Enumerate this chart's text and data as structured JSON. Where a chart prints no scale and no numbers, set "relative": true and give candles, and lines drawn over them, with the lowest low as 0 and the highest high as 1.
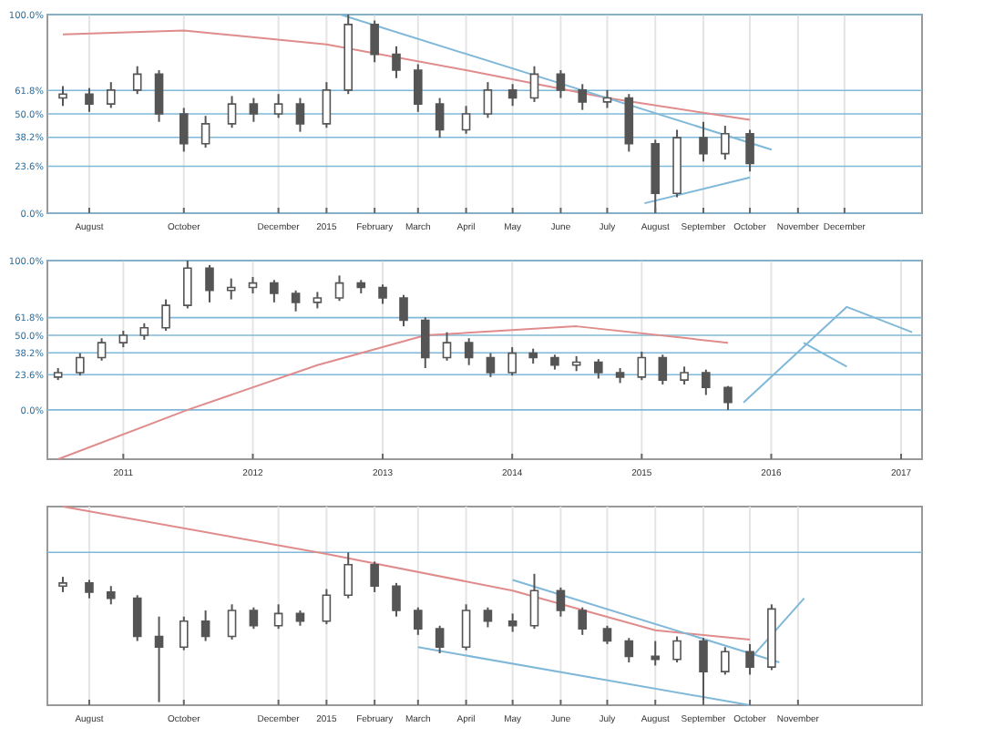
{
  "chart_data": [
    {
      "type": "candlestick",
      "relative": true,
      "grid": true,
      "color": "#555555",
      "xlim": [
        "2014-07-05",
        "2016-01-20"
      ],
      "xticks": [
        {
          "value": "2014-08-01",
          "label": "August"
        },
        {
          "value": "2014-10-01",
          "label": "October"
        },
        {
          "value": "2014-12-01",
          "label": "December"
        },
        {
          "value": "2015-01-01",
          "label": "2015"
        },
        {
          "value": "2015-02-01",
          "label": "February"
        },
        {
          "value": "2015-03-01",
          "label": "March"
        },
        {
          "value": "2015-04-01",
          "label": "April"
        },
        {
          "value": "2015-05-01",
          "label": "May"
        },
        {
          "value": "2015-06-01",
          "label": "June"
        },
        {
          "value": "2015-07-01",
          "label": "July"
        },
        {
          "value": "2015-08-01",
          "label": "August"
        },
        {
          "value": "2015-09-01",
          "label": "September"
        },
        {
          "value": "2015-10-01",
          "label": "October"
        },
        {
          "value": "2015-11-01",
          "label": "November"
        },
        {
          "value": "2015-12-01",
          "label": "December"
        }
      ],
      "x": [
        "2014-07-15",
        "2014-08-01",
        "2014-08-15",
        "2014-09-01",
        "2014-09-15",
        "2014-10-01",
        "2014-10-15",
        "2014-11-01",
        "2014-11-15",
        "2014-12-01",
        "2014-12-15",
        "2015-01-01",
        "2015-01-15",
        "2015-02-01",
        "2015-02-15",
        "2015-03-01",
        "2015-03-15",
        "2015-04-01",
        "2015-04-15",
        "2015-05-01",
        "2015-05-15",
        "2015-06-01",
        "2015-06-15",
        "2015-07-01",
        "2015-07-15",
        "2015-08-01",
        "2015-08-15",
        "2015-09-01",
        "2015-09-15",
        "2015-10-01"
      ],
      "ohlc": [
        [
          0.58,
          0.64,
          0.54,
          0.6
        ],
        [
          0.6,
          0.63,
          0.51,
          0.55
        ],
        [
          0.55,
          0.66,
          0.53,
          0.62
        ],
        [
          0.62,
          0.74,
          0.6,
          0.7
        ],
        [
          0.7,
          0.72,
          0.46,
          0.5
        ],
        [
          0.5,
          0.53,
          0.31,
          0.35
        ],
        [
          0.35,
          0.49,
          0.33,
          0.45
        ],
        [
          0.45,
          0.59,
          0.43,
          0.55
        ],
        [
          0.55,
          0.58,
          0.46,
          0.5
        ],
        [
          0.5,
          0.6,
          0.48,
          0.55
        ],
        [
          0.55,
          0.58,
          0.41,
          0.45
        ],
        [
          0.45,
          0.66,
          0.43,
          0.62
        ],
        [
          0.62,
          1,
          0.6,
          0.95
        ],
        [
          0.95,
          0.97,
          0.76,
          0.8
        ],
        [
          0.8,
          0.84,
          0.68,
          0.72
        ],
        [
          0.72,
          0.75,
          0.51,
          0.55
        ],
        [
          0.55,
          0.58,
          0.38,
          0.42
        ],
        [
          0.42,
          0.54,
          0.4,
          0.5
        ],
        [
          0.5,
          0.66,
          0.48,
          0.62
        ],
        [
          0.62,
          0.65,
          0.54,
          0.58
        ],
        [
          0.58,
          0.74,
          0.56,
          0.7
        ],
        [
          0.7,
          0.72,
          0.58,
          0.62
        ],
        [
          0.62,
          0.65,
          0.52,
          0.56
        ],
        [
          0.56,
          0.62,
          0.53,
          0.58
        ],
        [
          0.58,
          0.6,
          0.31,
          0.35
        ],
        [
          0.35,
          0.37,
          0,
          0.1
        ],
        [
          0.1,
          0.42,
          0.08,
          0.38
        ],
        [
          0.38,
          0.46,
          0.26,
          0.3
        ],
        [
          0.3,
          0.44,
          0.27,
          0.4
        ],
        [
          0.4,
          0.42,
          0.21,
          0.25
        ]
      ],
      "series": [
        {
          "type": "line",
          "color": "#e08c8c",
          "x": [
            "2014-07-15",
            "2014-10-01",
            "2015-01-01",
            "2015-04-01",
            "2015-07-01",
            "2015-10-01"
          ],
          "values": [
            0.9,
            0.92,
            0.85,
            0.72,
            0.58,
            0.47
          ]
        },
        {
          "type": "line",
          "color": "#7fb8d8",
          "x": [
            "2015-01-10",
            "2015-10-15"
          ],
          "values": [
            1.0,
            0.32
          ]
        },
        {
          "type": "line",
          "color": "#7fb8d8",
          "x": [
            "2015-07-25",
            "2015-10-01"
          ],
          "values": [
            0.05,
            0.18
          ]
        }
      ],
      "ref_lines": [
        {
          "axis": "y",
          "value": 1,
          "label": "100.0%",
          "color": "#7fb8d8"
        },
        {
          "axis": "y",
          "value": 0.618,
          "label": "61.8%",
          "color": "#7fb8d8"
        },
        {
          "axis": "y",
          "value": 0.5,
          "label": "50.0%",
          "color": "#7fb8d8"
        },
        {
          "axis": "y",
          "value": 0.382,
          "label": "38.2%",
          "color": "#7fb8d8"
        },
        {
          "axis": "y",
          "value": 0.236,
          "label": "23.6%",
          "color": "#7fb8d8"
        },
        {
          "axis": "y",
          "value": 0,
          "label": "0.0%",
          "color": "#7fb8d8"
        }
      ]
    },
    {
      "type": "candlestick",
      "relative": true,
      "grid": true,
      "color": "#555555",
      "xlim": [
        "2010-06-01",
        "2017-03-01"
      ],
      "xticks": [
        {
          "value": "2011-01-01",
          "label": "2011"
        },
        {
          "value": "2012-01-01",
          "label": "2012"
        },
        {
          "value": "2013-01-01",
          "label": "2013"
        },
        {
          "value": "2014-01-01",
          "label": "2014"
        },
        {
          "value": "2015-01-01",
          "label": "2015"
        },
        {
          "value": "2016-01-01",
          "label": "2016"
        },
        {
          "value": "2017-01-01",
          "label": "2017"
        }
      ],
      "x": [
        "2010-07-01",
        "2010-09-01",
        "2010-11-01",
        "2011-01-01",
        "2011-03-01",
        "2011-05-01",
        "2011-07-01",
        "2011-09-01",
        "2011-11-01",
        "2012-01-01",
        "2012-03-01",
        "2012-05-01",
        "2012-07-01",
        "2012-09-01",
        "2012-11-01",
        "2013-01-01",
        "2013-03-01",
        "2013-05-01",
        "2013-07-01",
        "2013-09-01",
        "2013-11-01",
        "2014-01-01",
        "2014-03-01",
        "2014-05-01",
        "2014-07-01",
        "2014-09-01",
        "2014-11-01",
        "2015-01-01",
        "2015-03-01",
        "2015-05-01",
        "2015-07-01",
        "2015-09-01"
      ],
      "ohlc": [
        [
          0.22,
          0.28,
          0.2,
          0.25
        ],
        [
          0.25,
          0.38,
          0.23,
          0.35
        ],
        [
          0.35,
          0.48,
          0.33,
          0.45
        ],
        [
          0.45,
          0.53,
          0.42,
          0.5
        ],
        [
          0.5,
          0.58,
          0.47,
          0.55
        ],
        [
          0.55,
          0.74,
          0.53,
          0.7
        ],
        [
          0.7,
          1,
          0.68,
          0.95
        ],
        [
          0.95,
          0.97,
          0.72,
          0.8
        ],
        [
          0.8,
          0.88,
          0.74,
          0.82
        ],
        [
          0.82,
          0.89,
          0.78,
          0.85
        ],
        [
          0.85,
          0.87,
          0.72,
          0.78
        ],
        [
          0.78,
          0.8,
          0.66,
          0.72
        ],
        [
          0.72,
          0.79,
          0.68,
          0.75
        ],
        [
          0.75,
          0.9,
          0.73,
          0.85
        ],
        [
          0.85,
          0.87,
          0.78,
          0.82
        ],
        [
          0.82,
          0.84,
          0.71,
          0.75
        ],
        [
          0.75,
          0.77,
          0.56,
          0.6
        ],
        [
          0.6,
          0.62,
          0.28,
          0.35
        ],
        [
          0.35,
          0.52,
          0.33,
          0.45
        ],
        [
          0.45,
          0.48,
          0.3,
          0.35
        ],
        [
          0.35,
          0.38,
          0.22,
          0.25
        ],
        [
          0.25,
          0.42,
          0.23,
          0.38
        ],
        [
          0.38,
          0.41,
          0.31,
          0.35
        ],
        [
          0.35,
          0.37,
          0.27,
          0.3
        ],
        [
          0.3,
          0.36,
          0.26,
          0.32
        ],
        [
          0.32,
          0.34,
          0.21,
          0.25
        ],
        [
          0.25,
          0.28,
          0.18,
          0.22
        ],
        [
          0.22,
          0.39,
          0.2,
          0.35
        ],
        [
          0.35,
          0.37,
          0.17,
          0.2
        ],
        [
          0.2,
          0.29,
          0.17,
          0.25
        ],
        [
          0.25,
          0.27,
          0.1,
          0.15
        ],
        [
          0.15,
          0.16,
          0,
          0.05
        ]
      ],
      "series": [
        {
          "type": "line",
          "color": "#e08c8c",
          "x": [
            "2010-07-01",
            "2011-07-01",
            "2012-07-01",
            "2013-05-01",
            "2014-07-01",
            "2015-09-01"
          ],
          "values": [
            -0.33,
            0.0,
            0.3,
            0.5,
            0.56,
            0.45
          ]
        },
        {
          "type": "line",
          "color": "#7fb8d8",
          "x": [
            "2015-10-15",
            "2016-08-01",
            "2017-02-01"
          ],
          "values": [
            0.05,
            0.69,
            0.52
          ]
        },
        {
          "type": "line",
          "color": "#7fb8d8",
          "x": [
            "2016-04-01",
            "2016-08-01"
          ],
          "values": [
            0.45,
            0.29
          ]
        }
      ],
      "ref_lines": [
        {
          "axis": "y",
          "value": 1,
          "label": "100.0%",
          "color": "#7fb8d8"
        },
        {
          "axis": "y",
          "value": 0.618,
          "label": "61.8%",
          "color": "#7fb8d8"
        },
        {
          "axis": "y",
          "value": 0.5,
          "label": "50.0%",
          "color": "#7fb8d8"
        },
        {
          "axis": "y",
          "value": 0.382,
          "label": "38.2%",
          "color": "#7fb8d8"
        },
        {
          "axis": "y",
          "value": 0.236,
          "label": "23.6%",
          "color": "#7fb8d8"
        },
        {
          "axis": "y",
          "value": 0,
          "label": "0.0%",
          "color": "#7fb8d8"
        }
      ]
    },
    {
      "type": "candlestick",
      "relative": true,
      "grid": true,
      "color": "#555555",
      "xlim": [
        "2014-07-05",
        "2016-01-20"
      ],
      "xticks": [
        {
          "value": "2014-08-01",
          "label": "August"
        },
        {
          "value": "2014-10-01",
          "label": "October"
        },
        {
          "value": "2014-12-01",
          "label": "December"
        },
        {
          "value": "2015-01-01",
          "label": "2015"
        },
        {
          "value": "2015-02-01",
          "label": "February"
        },
        {
          "value": "2015-03-01",
          "label": "March"
        },
        {
          "value": "2015-04-01",
          "label": "April"
        },
        {
          "value": "2015-05-01",
          "label": "May"
        },
        {
          "value": "2015-06-01",
          "label": "June"
        },
        {
          "value": "2015-07-01",
          "label": "July"
        },
        {
          "value": "2015-08-01",
          "label": "August"
        },
        {
          "value": "2015-09-01",
          "label": "September"
        },
        {
          "value": "2015-10-01",
          "label": "October"
        },
        {
          "value": "2015-11-01",
          "label": "November"
        }
      ],
      "x": [
        "2014-07-15",
        "2014-08-01",
        "2014-08-15",
        "2014-09-01",
        "2014-09-15",
        "2014-10-01",
        "2014-10-15",
        "2014-11-01",
        "2014-11-15",
        "2014-12-01",
        "2014-12-15",
        "2015-01-01",
        "2015-01-15",
        "2015-02-01",
        "2015-02-15",
        "2015-03-01",
        "2015-03-15",
        "2015-04-01",
        "2015-04-15",
        "2015-05-01",
        "2015-05-15",
        "2015-06-01",
        "2015-06-15",
        "2015-07-01",
        "2015-07-15",
        "2015-08-01",
        "2015-08-15",
        "2015-09-01",
        "2015-09-15",
        "2015-10-01",
        "2015-10-15"
      ],
      "ohlc": [
        [
          0.78,
          0.84,
          0.74,
          0.8
        ],
        [
          0.8,
          0.82,
          0.7,
          0.74
        ],
        [
          0.74,
          0.78,
          0.66,
          0.7
        ],
        [
          0.7,
          0.72,
          0.42,
          0.45
        ],
        [
          0.45,
          0.58,
          0.02,
          0.38
        ],
        [
          0.38,
          0.58,
          0.36,
          0.55
        ],
        [
          0.55,
          0.62,
          0.42,
          0.45
        ],
        [
          0.45,
          0.66,
          0.43,
          0.62
        ],
        [
          0.62,
          0.64,
          0.5,
          0.52
        ],
        [
          0.52,
          0.66,
          0.5,
          0.6
        ],
        [
          0.6,
          0.62,
          0.52,
          0.55
        ],
        [
          0.55,
          0.76,
          0.53,
          0.72
        ],
        [
          0.72,
          1,
          0.7,
          0.92
        ],
        [
          0.92,
          0.94,
          0.74,
          0.78
        ],
        [
          0.78,
          0.8,
          0.58,
          0.62
        ],
        [
          0.62,
          0.64,
          0.46,
          0.5
        ],
        [
          0.5,
          0.52,
          0.34,
          0.38
        ],
        [
          0.38,
          0.66,
          0.36,
          0.62
        ],
        [
          0.62,
          0.64,
          0.51,
          0.55
        ],
        [
          0.55,
          0.6,
          0.48,
          0.52
        ],
        [
          0.52,
          0.86,
          0.5,
          0.75
        ],
        [
          0.75,
          0.77,
          0.58,
          0.62
        ],
        [
          0.62,
          0.64,
          0.46,
          0.5
        ],
        [
          0.5,
          0.52,
          0.4,
          0.42
        ],
        [
          0.42,
          0.44,
          0.28,
          0.32
        ],
        [
          0.32,
          0.42,
          0.26,
          0.3
        ],
        [
          0.3,
          0.45,
          0.28,
          0.42
        ],
        [
          0.42,
          0.44,
          0,
          0.22
        ],
        [
          0.22,
          0.38,
          0.2,
          0.35
        ],
        [
          0.35,
          0.4,
          0.2,
          0.25
        ],
        [
          0.25,
          0.66,
          0.23,
          0.63
        ]
      ],
      "series": [
        {
          "type": "line",
          "color": "#e08c8c",
          "x": [
            "2014-07-15",
            "2015-01-01",
            "2015-05-01",
            "2015-08-01",
            "2015-10-01"
          ],
          "values": [
            1.3,
            0.99,
            0.75,
            0.49,
            0.43
          ]
        },
        {
          "type": "line",
          "color": "#7fb8d8",
          "x": [
            "2015-05-01",
            "2015-10-20"
          ],
          "values": [
            0.82,
            0.28
          ]
        },
        {
          "type": "line",
          "color": "#7fb8d8",
          "x": [
            "2015-03-01",
            "2015-10-01"
          ],
          "values": [
            0.38,
            0.0
          ]
        },
        {
          "type": "line",
          "color": "#7fb8d8",
          "x": [
            "2015-10-01",
            "2015-11-05"
          ],
          "values": [
            0.3,
            0.7
          ]
        }
      ],
      "ref_lines": [
        {
          "axis": "y",
          "value": 1,
          "label": null,
          "color": "#7fb8d8"
        }
      ]
    }
  ]
}
